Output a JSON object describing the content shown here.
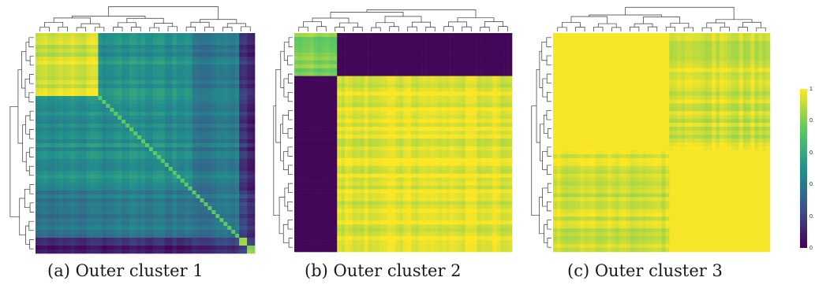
{
  "captions": [
    "(a) Outer cluster 1",
    "(b) Outer cluster 2",
    "(c) Outer cluster 3"
  ],
  "colorbar": {
    "tick_labels": [
      "1",
      "0.",
      "0.",
      "0.",
      "0.",
      "0"
    ],
    "colormap": "viridis"
  },
  "colors": {
    "viridis": [
      "#440154",
      "#3b528b",
      "#21918c",
      "#5ec962",
      "#fde725"
    ]
  },
  "chart_data": [
    {
      "type": "heatmap",
      "title": "(a) Outer cluster 1",
      "value_range": [
        0,
        1
      ],
      "dendrograms": [
        "top",
        "left"
      ],
      "block_boundaries": [
        0,
        0.28,
        0.72,
        0.93,
        0.97,
        1.0
      ],
      "block_matrix": [
        [
          0.93,
          0.5,
          0.4,
          0.18,
          0.1
        ],
        [
          0.5,
          0.5,
          0.42,
          0.2,
          0.1
        ],
        [
          0.4,
          0.42,
          0.4,
          0.25,
          0.15
        ],
        [
          0.18,
          0.2,
          0.25,
          0.92,
          0.25
        ],
        [
          0.1,
          0.1,
          0.15,
          0.25,
          0.85
        ]
      ]
    },
    {
      "type": "heatmap",
      "title": "(b) Outer cluster 2",
      "value_range": [
        0,
        1
      ],
      "dendrograms": [
        "top",
        "left"
      ],
      "block_boundaries": [
        0,
        0.2,
        1.0
      ],
      "block_matrix": [
        [
          0.8,
          0.02
        ],
        [
          0.02,
          0.96
        ]
      ]
    },
    {
      "type": "heatmap",
      "title": "(c) Outer cluster 3",
      "value_range": [
        0,
        1
      ],
      "dendrograms": [
        "top",
        "left"
      ],
      "block_boundaries": [
        0,
        0.53,
        1.0
      ],
      "block_matrix": [
        [
          0.99,
          0.94
        ],
        [
          0.94,
          0.99
        ]
      ]
    }
  ]
}
